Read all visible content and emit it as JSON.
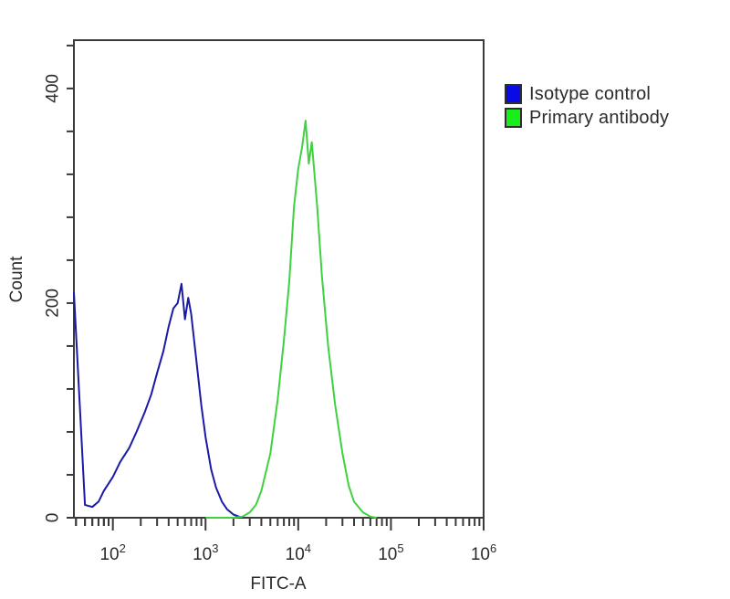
{
  "chart_data": {
    "type": "line",
    "subtype": "flow-cytometry-histogram",
    "title": "",
    "xlabel": "FITC-A",
    "ylabel": "Count",
    "x_scale": "log",
    "xlim": [
      38,
      1000000
    ],
    "ylim": [
      0,
      445
    ],
    "grid": false,
    "legend_position": "right-outside-top",
    "x_ticks": [
      {
        "label_base": "10",
        "label_exp": "2",
        "value": 100
      },
      {
        "label_base": "10",
        "label_exp": "3",
        "value": 1000
      },
      {
        "label_base": "10",
        "label_exp": "4",
        "value": 10000
      },
      {
        "label_base": "10",
        "label_exp": "5",
        "value": 100000
      },
      {
        "label_base": "10",
        "label_exp": "6",
        "value": 1000000
      }
    ],
    "y_ticks": [
      {
        "label": "0",
        "value": 0
      },
      {
        "label": "200",
        "value": 200
      },
      {
        "label": "400",
        "value": 400
      }
    ],
    "series": [
      {
        "name": "Isotype control",
        "color": "#1a1aa8",
        "legend_color": "#0a0ae6",
        "x": [
          38,
          50,
          60,
          70,
          80,
          100,
          120,
          150,
          180,
          220,
          260,
          300,
          350,
          400,
          450,
          500,
          550,
          600,
          650,
          700,
          800,
          900,
          1000,
          1150,
          1300,
          1500,
          1700,
          2000,
          2300,
          2600
        ],
        "y": [
          210,
          12,
          10,
          15,
          25,
          38,
          52,
          65,
          80,
          98,
          115,
          135,
          155,
          178,
          195,
          200,
          218,
          185,
          205,
          190,
          145,
          105,
          75,
          45,
          28,
          15,
          8,
          3,
          1,
          0
        ]
      },
      {
        "name": "Primary antibody",
        "color": "#3fd23f",
        "legend_color": "#1aee1a",
        "x": [
          1000,
          1500,
          2000,
          2500,
          3000,
          3500,
          4000,
          5000,
          6000,
          7000,
          8000,
          9000,
          10000,
          11000,
          12000,
          13000,
          14000,
          16000,
          18000,
          21000,
          25000,
          30000,
          35000,
          40000,
          50000,
          60000,
          70000
        ],
        "y": [
          0,
          0,
          0,
          1,
          5,
          12,
          25,
          60,
          110,
          165,
          220,
          290,
          325,
          345,
          370,
          330,
          350,
          290,
          225,
          160,
          105,
          60,
          30,
          15,
          5,
          1,
          0
        ]
      }
    ]
  },
  "legend": {
    "items": [
      {
        "label": "Isotype control",
        "color": "#0a0ae6"
      },
      {
        "label": "Primary antibody",
        "color": "#1aee1a"
      }
    ]
  },
  "axes": {
    "x_title": "FITC-A",
    "y_title": "Count"
  }
}
